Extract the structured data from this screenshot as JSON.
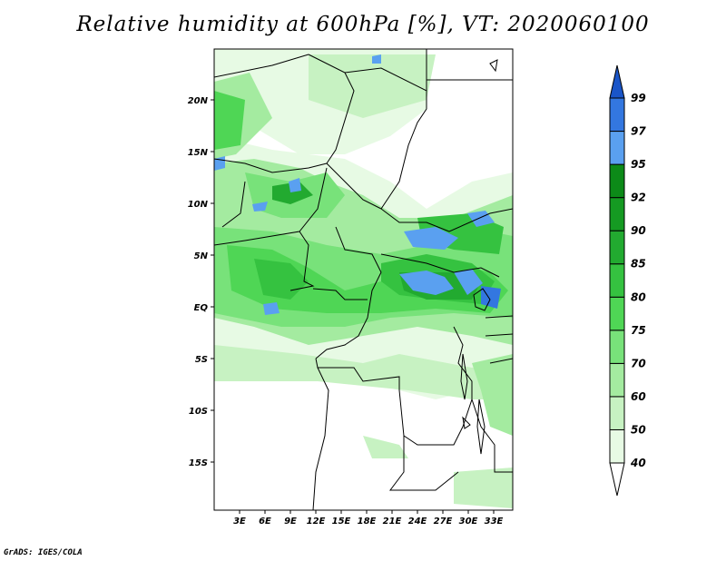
{
  "title": "Relative humidity at 600hPa [%], VT: 2020060100",
  "credit": "GrADS: IGES/COLA",
  "lat_labels": [
    "20N",
    "15N",
    "10N",
    "5N",
    "EQ",
    "5S",
    "10S",
    "15S"
  ],
  "lon_labels": [
    "3E",
    "6E",
    "9E",
    "12E",
    "15E",
    "18E",
    "21E",
    "24E",
    "27E",
    "30E",
    "33E"
  ],
  "colorbar": {
    "levels": [
      "40",
      "50",
      "60",
      "70",
      "75",
      "80",
      "85",
      "90",
      "92",
      "95",
      "97",
      "99"
    ],
    "colors": [
      "#ffffff",
      "#e7fae4",
      "#c7f2c2",
      "#a4eba0",
      "#78e27a",
      "#4fd655",
      "#35c240",
      "#22aa30",
      "#159a22",
      "#0c8a18",
      "#5aa0f0",
      "#3377e0",
      "#1a55c8"
    ]
  }
}
